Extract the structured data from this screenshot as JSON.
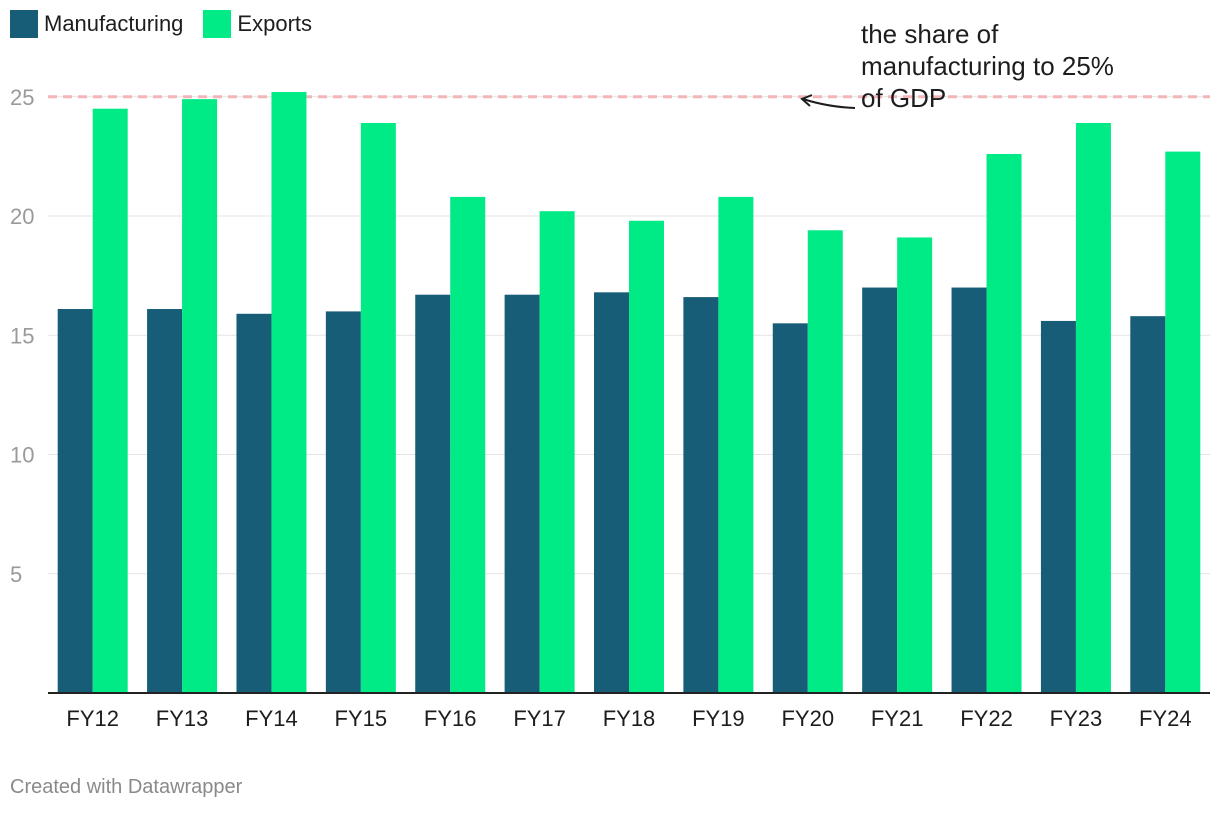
{
  "legend": {
    "items": [
      {
        "label": "Manufacturing",
        "color": "#175d78"
      },
      {
        "label": "Exports",
        "color": "#00ea85"
      }
    ]
  },
  "annotation": {
    "lines": [
      "the share of",
      "manufacturing to 25%",
      "of GDP"
    ],
    "target_value": 25,
    "line_color": "#f3b5b8"
  },
  "footer": "Created with Datawrapper",
  "chart_data": {
    "type": "bar",
    "categories": [
      "FY12",
      "FY13",
      "FY14",
      "FY15",
      "FY16",
      "FY17",
      "FY18",
      "FY19",
      "FY20",
      "FY21",
      "FY22",
      "FY23",
      "FY24"
    ],
    "series": [
      {
        "name": "Manufacturing",
        "color": "#175d78",
        "values": [
          16.1,
          16.1,
          15.9,
          16.0,
          16.7,
          16.7,
          16.8,
          16.6,
          15.5,
          17.0,
          17.0,
          15.6,
          15.8
        ]
      },
      {
        "name": "Exports",
        "color": "#00ea85",
        "values": [
          24.5,
          24.9,
          25.2,
          23.9,
          20.8,
          20.2,
          19.8,
          20.8,
          19.4,
          19.1,
          22.6,
          23.9,
          22.7
        ]
      }
    ],
    "yticks": [
      5,
      10,
      15,
      20,
      25
    ],
    "ylim": [
      0,
      29
    ],
    "grid": true,
    "legend_position": "top-left",
    "reference_line": 25
  }
}
